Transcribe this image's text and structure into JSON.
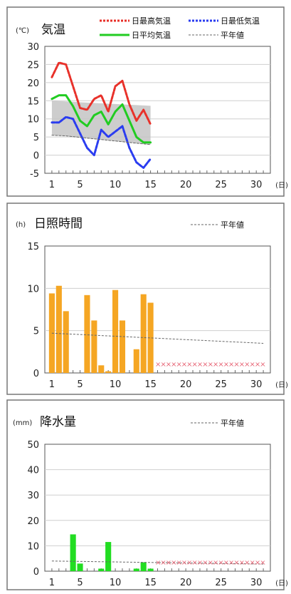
{
  "chart_data": [
    {
      "type": "line",
      "title": "気温",
      "unit": "(℃)",
      "x_unit": "(日)",
      "xlim": [
        0,
        32
      ],
      "ylim": [
        -5,
        30
      ],
      "yticks": [
        -5,
        0,
        5,
        10,
        15,
        20,
        25,
        30
      ],
      "xticks": [
        1,
        5,
        10,
        15,
        20,
        25,
        30
      ],
      "grid": true,
      "legend_position": "top",
      "legend": [
        "日最高気温",
        "日最低気温",
        "日平均気温",
        "平年値"
      ],
      "x": [
        1,
        2,
        3,
        4,
        5,
        6,
        7,
        8,
        9,
        10,
        11,
        12,
        13,
        14,
        15
      ],
      "series": [
        {
          "name": "日最高気温",
          "color": "#e8312a",
          "dash": "3,2",
          "values": [
            21.5,
            25.5,
            25,
            19,
            13,
            12.5,
            15.5,
            16.5,
            12,
            19,
            20.5,
            14,
            9.5,
            12.5,
            8.5
          ]
        },
        {
          "name": "日最低気温",
          "color": "#2a3cf0",
          "dash": "3,2",
          "values": [
            9,
            9,
            10.5,
            10,
            6,
            2,
            0,
            7,
            5,
            6.5,
            8,
            2,
            -2,
            -3.5,
            -1
          ]
        },
        {
          "name": "日平均気温",
          "color": "#22cc22",
          "dash": "",
          "values": [
            15.5,
            16.5,
            16.5,
            13.5,
            9.5,
            8,
            11,
            12,
            8.5,
            12,
            14,
            9.5,
            5,
            3.5,
            3.5
          ]
        },
        {
          "name": "平年値",
          "color": "#666666",
          "dash": "3,2",
          "values": [
            5.5,
            5.4,
            5.3,
            5.1,
            4.9,
            4.7,
            4.5,
            4.3,
            4.1,
            3.9,
            3.7,
            3.5,
            3.3,
            3.1,
            2.9
          ]
        }
      ],
      "normal_band_color": "#c4c4c4",
      "normal_band_upper": [
        15,
        14.9,
        14.8,
        14.7,
        14.6,
        14.5,
        14.4,
        14.3,
        14.2,
        14.1,
        14,
        13.9,
        13.8,
        13.7,
        13.6
      ],
      "normal_band_lower": [
        5.5,
        5.4,
        5.3,
        5.1,
        4.9,
        4.7,
        4.5,
        4.3,
        4.1,
        3.9,
        3.7,
        3.5,
        3.3,
        3.1,
        2.9
      ]
    },
    {
      "type": "bar",
      "title": "日照時間",
      "unit": "(h)",
      "x_unit": "(日)",
      "xlim": [
        0,
        32
      ],
      "ylim": [
        0,
        15
      ],
      "yticks": [
        0,
        5,
        10,
        15
      ],
      "xticks": [
        1,
        5,
        10,
        15,
        20,
        25,
        30
      ],
      "grid": true,
      "legend_position": "top-right",
      "legend": [
        "平年値"
      ],
      "bar_color": "#f5a623",
      "x": [
        1,
        2,
        3,
        4,
        5,
        6,
        7,
        8,
        9,
        10,
        11,
        12,
        13,
        14,
        15
      ],
      "values": [
        9.4,
        10.3,
        7.3,
        0,
        0,
        9.2,
        6.2,
        0.9,
        0.2,
        9.8,
        6.2,
        0,
        2.8,
        9.3,
        8.3
      ],
      "normal_x": [
        1,
        31
      ],
      "normal_values": [
        4.7,
        3.5
      ],
      "normal_color": "#666666",
      "missing_days": [
        16,
        31
      ],
      "missing_marker": "xxxxxxxxxxxxxxxxxxxxx"
    },
    {
      "type": "bar",
      "title": "降水量",
      "unit": "(mm)",
      "x_unit": "(日)",
      "xlim": [
        0,
        32
      ],
      "ylim": [
        0,
        50
      ],
      "yticks": [
        0,
        10,
        20,
        30,
        40,
        50
      ],
      "xticks": [
        1,
        5,
        10,
        15,
        20,
        25,
        30
      ],
      "grid": true,
      "legend_position": "top-right",
      "legend": [
        "平年値"
      ],
      "bar_color": "#22dd22",
      "x": [
        1,
        2,
        3,
        4,
        5,
        6,
        7,
        8,
        9,
        10,
        11,
        12,
        13,
        14,
        15
      ],
      "values": [
        0,
        0,
        0,
        14.5,
        3,
        0,
        0,
        1,
        11.5,
        0,
        0,
        0,
        1,
        3.5,
        1
      ],
      "normal_x": [
        1,
        31
      ],
      "normal_values": [
        4,
        2.8
      ],
      "normal_color": "#666666",
      "missing_days": [
        16,
        31
      ],
      "missing_marker": "xxxxxxxxxxxxxxxxxxxxx"
    }
  ]
}
